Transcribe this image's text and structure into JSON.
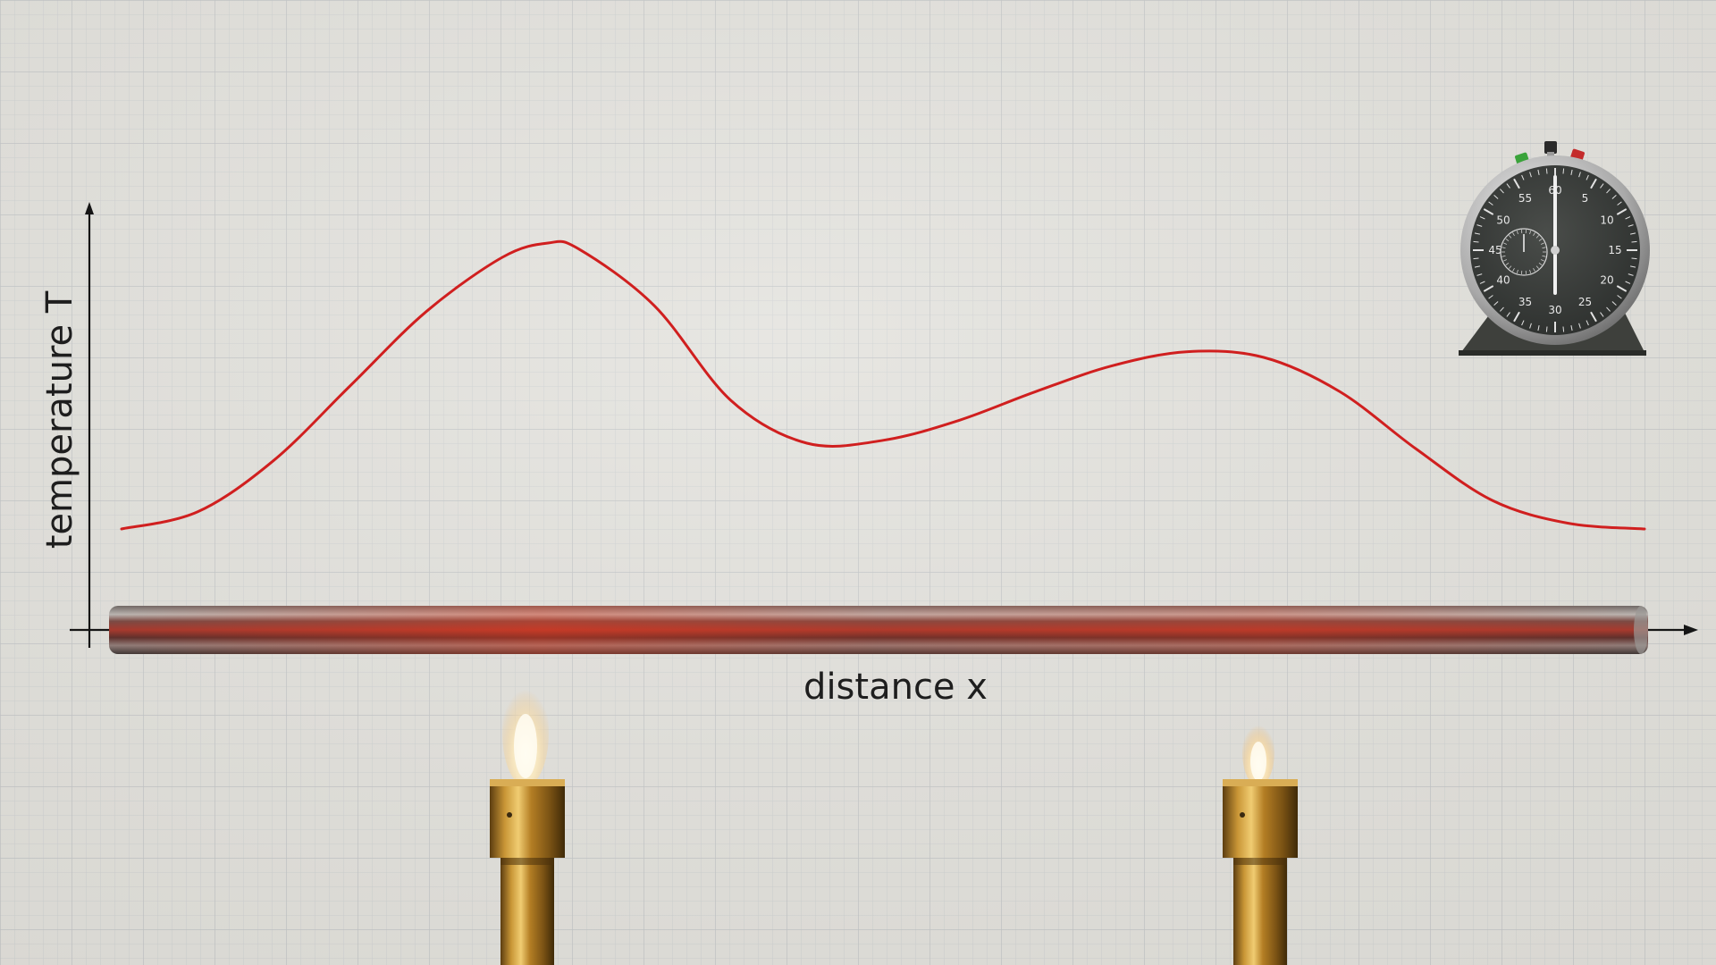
{
  "diagram": {
    "x_axis_label": "distance x",
    "y_axis_label": "temperature T"
  },
  "chart_data": {
    "type": "line",
    "title": "",
    "xlabel": "distance x",
    "ylabel": "temperature T",
    "series": [
      {
        "color": "#d01f1f",
        "x": [
          0.0,
          0.05,
          0.1,
          0.15,
          0.2,
          0.25,
          0.28,
          0.3,
          0.35,
          0.4,
          0.45,
          0.5,
          0.55,
          0.6,
          0.65,
          0.7,
          0.75,
          0.8,
          0.85,
          0.9,
          0.95,
          1.0
        ],
        "y": [
          0.0,
          0.06,
          0.24,
          0.5,
          0.76,
          0.95,
          1.0,
          0.98,
          0.78,
          0.45,
          0.3,
          0.31,
          0.38,
          0.48,
          0.57,
          0.62,
          0.6,
          0.48,
          0.28,
          0.1,
          0.02,
          0.0
        ]
      }
    ]
  },
  "objects": {
    "rod_material": "copper",
    "burners": [
      {
        "position_x": 0.27,
        "flame_size": "large"
      },
      {
        "position_x": 0.75,
        "flame_size": "small"
      }
    ],
    "stopwatch": {
      "dial_numbers": [
        "60",
        "5",
        "10",
        "15",
        "20",
        "25",
        "30",
        "35",
        "40",
        "45",
        "50",
        "55"
      ],
      "button_colors": [
        "#3aa33a",
        "#2a2a2a",
        "#c42b2b"
      ]
    }
  },
  "colors": {
    "paper": "#e2e1dc",
    "grid": "#c9cbcc",
    "curve": "#d01f1f",
    "axis": "#151515",
    "brass": "#b8862a"
  }
}
